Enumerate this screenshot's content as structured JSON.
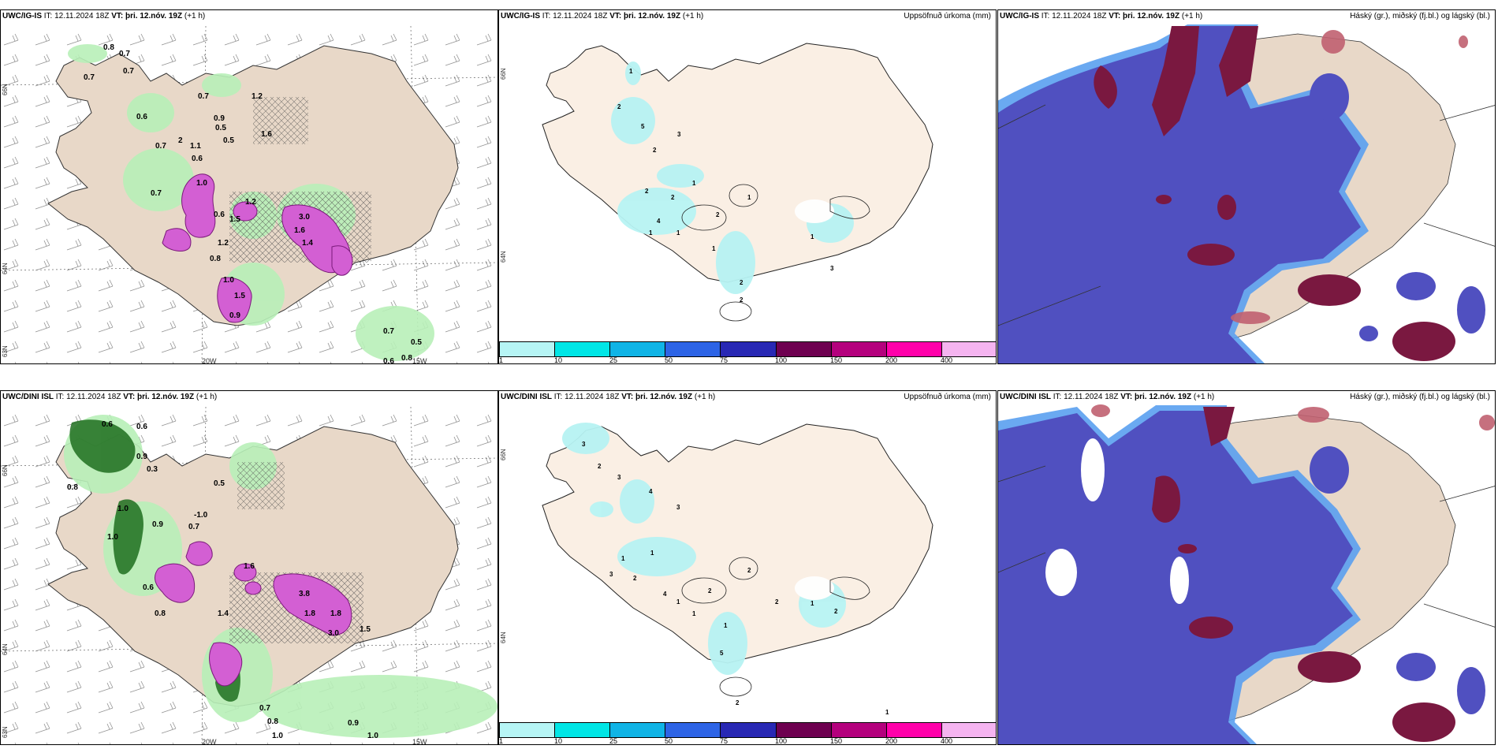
{
  "rows": [
    {
      "model": "UWC/IG-IS",
      "it_label": "IT:",
      "it_value": "12.11.2024 18Z",
      "vt_label": "VT:",
      "vt_value": "þri. 12.nóv. 19Z",
      "lead": "(+1 h)",
      "precip_title": "Uppsöfnuð úrkoma (mm)",
      "cloud_title": "Háský (gr.), miðský (fj.bl.) og lágský (bl.)",
      "left_labels": [
        "0.8",
        "0.7",
        "0.7",
        "0.7",
        "0.7",
        "1.2",
        "0.6",
        "0.9",
        "0.5",
        "0.5",
        "0.7",
        "1.1",
        "0.6",
        "1.6",
        "2",
        "0.7",
        "1.0",
        "1.2",
        "0.6",
        "1.5",
        "3.0",
        "1.6",
        "1.4",
        "1.2",
        "0.8",
        "1.0",
        "1.5",
        "0.9",
        "0.7",
        "0.5",
        "0.8",
        "0.6"
      ],
      "mid_labels": [
        "1",
        "2",
        "5",
        "2",
        "3",
        "1",
        "2",
        "2",
        "4",
        "1",
        "1",
        "2",
        "1",
        "1",
        "1",
        "2",
        "2",
        "3"
      ],
      "lon_labels": [
        "20W",
        "15W"
      ],
      "lat_labels": [
        "66N",
        "64N",
        "63N"
      ]
    },
    {
      "model": "UWC/DINI ISL",
      "it_label": "IT:",
      "it_value": "12.11.2024 18Z",
      "vt_label": "VT:",
      "vt_value": "þri. 12.nóv. 19Z",
      "lead": "(+1 h)",
      "precip_title": "Uppsöfnuð úrkoma (mm)",
      "cloud_title": "Háský (gr.), miðský (fj.bl.) og lágský (bl.)",
      "left_labels": [
        "0.6",
        "0.6",
        "0.9",
        "0.3",
        "0.8",
        "1.0",
        "1.0",
        "0.9",
        "-1.0",
        "0.7",
        "0.5",
        "0.6",
        "0.8",
        "1.6",
        "1.4",
        "1.8",
        "3.8",
        "1.8",
        "3.0",
        "1.5",
        "0.7",
        "0.8",
        "1.0",
        "0.9",
        "1.0"
      ],
      "mid_labels": [
        "3",
        "2",
        "3",
        "4",
        "3",
        "1",
        "1",
        "3",
        "2",
        "4",
        "1",
        "1",
        "2",
        "2",
        "2",
        "1",
        "2",
        "1",
        "5",
        "2",
        "1"
      ],
      "lon_labels": [
        "20W",
        "15W"
      ],
      "lat_labels": [
        "66N",
        "64N",
        "63N"
      ]
    }
  ],
  "colorbar": {
    "colors": [
      "#b6f5f5",
      "#00e6e6",
      "#10b4e6",
      "#2d64e6",
      "#2828b4",
      "#6e0050",
      "#b4007d",
      "#ff00aa",
      "#f5b4f0"
    ],
    "ticks": [
      "1",
      "10",
      "25",
      "50",
      "75",
      "100",
      "150",
      "200",
      "400"
    ]
  },
  "palette": {
    "land": "#e8d8c8",
    "land_light": "#faefe4",
    "cyan": "#b7f3f3",
    "green_light": "#b8f0b8",
    "green_dark": "#1e6e1e",
    "magenta": "#d35fd3",
    "cloud_low": "#5050c0",
    "cloud_low_edge": "#5aa0f0",
    "cloud_high": "#7a1840",
    "cloud_mid": "#c06070"
  }
}
